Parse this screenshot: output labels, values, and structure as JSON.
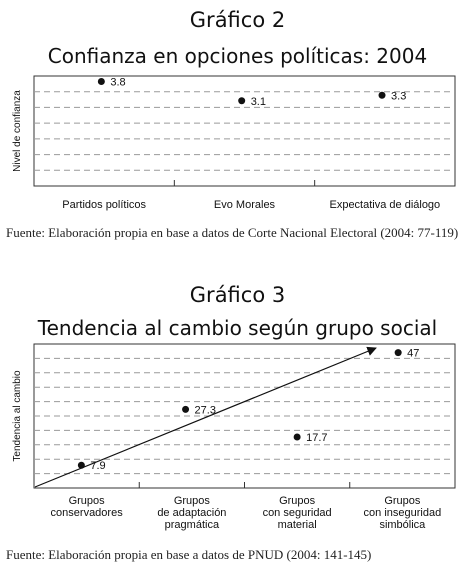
{
  "charts": [
    {
      "number": "Gráfico 2",
      "title": "Confianza en opciones políticas: 2004",
      "source": "Fuente: Elaboración propia en base a datos de Corte Nacional Electoral (2004: 77-119)"
    },
    {
      "number": "Gráfico 3",
      "title": "Tendencia al cambio según grupo social",
      "source": "Fuente: Elaboración propia en base a datos de PNUD (2004: 141-145)"
    }
  ],
  "chart_data": [
    {
      "type": "scatter",
      "title": "Confianza en opciones políticas: 2004",
      "ylabel": "Nivel de confianza",
      "xlabel": "",
      "categories": [
        "Partidos políticos",
        "Evo Morales",
        "Expectativa de diálogo"
      ],
      "values": [
        3.8,
        3.1,
        3.3
      ],
      "value_labels": [
        "3.8",
        "3.1",
        "3.3"
      ],
      "ylim": [
        0,
        4
      ],
      "grid": true,
      "grid_style": "dashed",
      "colors": {
        "points": "#111111",
        "grid": "#9a9a9a",
        "axes": "#333333"
      }
    },
    {
      "type": "scatter",
      "title": "Tendencia al cambio según grupo social",
      "ylabel": "Tendencia al cambio",
      "xlabel": "",
      "categories": [
        [
          "Grupos",
          "conservadores"
        ],
        [
          "Grupos",
          "de adaptación",
          "pragmática"
        ],
        [
          "Grupos",
          "con seguridad",
          "material"
        ],
        [
          "Grupos",
          "con inseguridad",
          "simbólica"
        ]
      ],
      "values": [
        7.9,
        27.3,
        17.7,
        47
      ],
      "value_labels": [
        "7.9",
        "27.3",
        "17.7",
        "47"
      ],
      "ylim": [
        0,
        50
      ],
      "grid": true,
      "grid_style": "dashed",
      "trend_arrow": true,
      "colors": {
        "points": "#111111",
        "grid": "#9a9a9a",
        "axes": "#333333",
        "arrow": "#111111"
      }
    }
  ]
}
